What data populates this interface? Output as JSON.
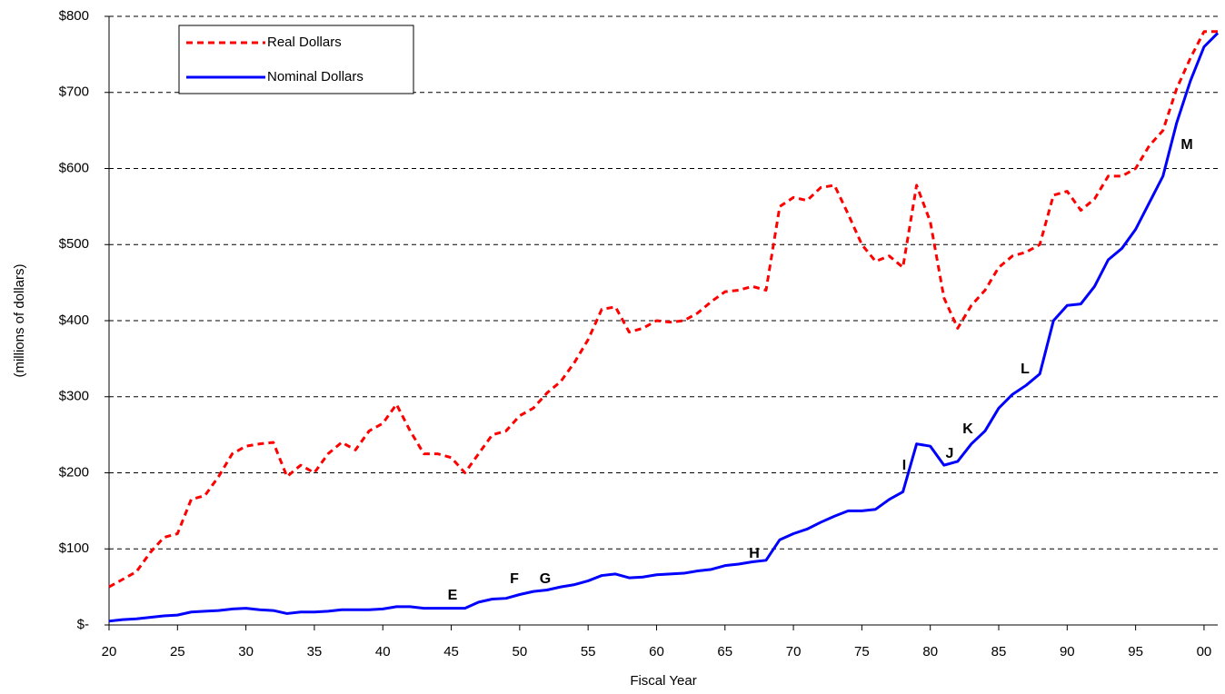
{
  "chart_data": {
    "type": "line",
    "x_label": "Fiscal Year",
    "y_label": "(millions of dollars)",
    "x": [
      20,
      21,
      22,
      23,
      24,
      25,
      26,
      27,
      28,
      29,
      30,
      31,
      32,
      33,
      34,
      35,
      36,
      37,
      38,
      39,
      40,
      41,
      42,
      43,
      44,
      45,
      46,
      47,
      48,
      49,
      50,
      51,
      52,
      53,
      54,
      55,
      56,
      57,
      58,
      59,
      60,
      61,
      62,
      63,
      64,
      65,
      66,
      67,
      68,
      69,
      70,
      71,
      72,
      73,
      74,
      75,
      76,
      77,
      78,
      79,
      80,
      81,
      82,
      83,
      84,
      85,
      86,
      87,
      88,
      89,
      90,
      91,
      92,
      93,
      94,
      95,
      96,
      97,
      98,
      99,
      100,
      101
    ],
    "series": [
      {
        "name": "Real Dollars",
        "color": "#ff0000",
        "dashed": true,
        "values": [
          50,
          60,
          70,
          95,
          115,
          120,
          165,
          170,
          195,
          225,
          235,
          238,
          240,
          195,
          210,
          200,
          225,
          240,
          230,
          255,
          265,
          290,
          255,
          225,
          225,
          220,
          200,
          225,
          250,
          255,
          275,
          285,
          305,
          320,
          345,
          375,
          415,
          418,
          385,
          390,
          400,
          398,
          400,
          410,
          425,
          438,
          440,
          445,
          440,
          550,
          562,
          558,
          575,
          578,
          540,
          500,
          478,
          485,
          470,
          578,
          530,
          430,
          390,
          420,
          440,
          470,
          485,
          490,
          500,
          565,
          570,
          545,
          560,
          590,
          590,
          600,
          630,
          650,
          705,
          745,
          780,
          780
        ]
      },
      {
        "name": "Nominal Dollars",
        "color": "#0000ff",
        "dashed": false,
        "values": [
          5,
          7,
          8,
          10,
          12,
          13,
          17,
          18,
          19,
          21,
          22,
          20,
          19,
          15,
          17,
          17,
          18,
          20,
          20,
          20,
          21,
          24,
          24,
          22,
          22,
          22,
          22,
          30,
          34,
          35,
          40,
          44,
          46,
          50,
          53,
          58,
          65,
          67,
          62,
          63,
          66,
          67,
          68,
          71,
          73,
          78,
          80,
          83,
          85,
          112,
          120,
          126,
          135,
          143,
          150,
          150,
          152,
          165,
          175,
          238,
          235,
          210,
          215,
          238,
          255,
          285,
          303,
          315,
          330,
          400,
          420,
          422,
          445,
          480,
          495,
          520,
          555,
          590,
          660,
          715,
          760,
          778
        ]
      }
    ],
    "annotations": [
      "E",
      "F",
      "G",
      "H",
      "I",
      "J",
      "K",
      "L",
      "M"
    ],
    "xlim": [
      20,
      101
    ],
    "xticks": [
      20,
      25,
      30,
      35,
      40,
      45,
      50,
      55,
      60,
      65,
      70,
      75,
      80,
      85,
      90,
      95,
      {
        "value": 100,
        "label": "00"
      }
    ],
    "ylim": [
      0,
      800
    ],
    "yticks": [
      {
        "value": 0,
        "label": "$-"
      },
      {
        "value": 100,
        "label": "$100"
      },
      {
        "value": 200,
        "label": "$200"
      },
      {
        "value": 300,
        "label": "$300"
      },
      {
        "value": 400,
        "label": "$400"
      },
      {
        "value": 500,
        "label": "$500"
      },
      {
        "value": 600,
        "label": "$600"
      },
      {
        "value": 700,
        "label": "$700"
      },
      {
        "value": 800,
        "label": "$800"
      }
    ],
    "grid": true,
    "legend": "upper left"
  }
}
